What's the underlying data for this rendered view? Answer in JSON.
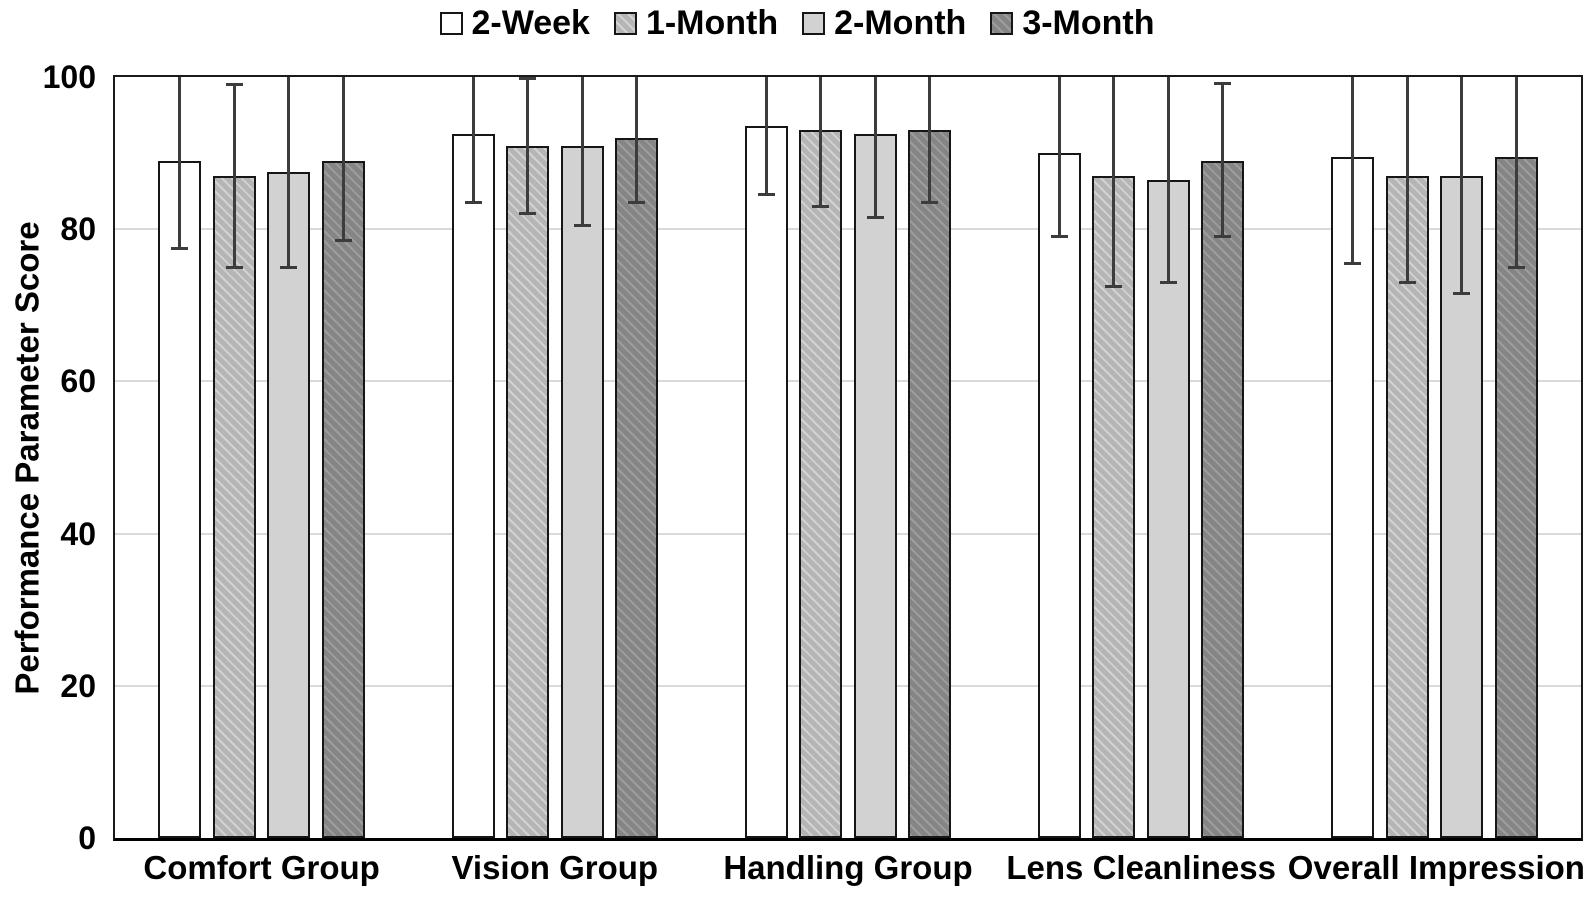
{
  "chart_data": {
    "type": "bar",
    "ylabel": "Performance Parameter Score",
    "ylim": [
      0,
      100
    ],
    "yticks": [
      0,
      20,
      40,
      60,
      80,
      100
    ],
    "gridlines": [
      20,
      40,
      60,
      80
    ],
    "grid": true,
    "legend_position": "top",
    "error_bars": true,
    "categories": [
      "Comfort Group",
      "Vision Group",
      "Handling Group",
      "Lens Cleanliness",
      "Overall Impression"
    ],
    "series": [
      {
        "name": "2-Week",
        "fill": "#ffffff",
        "stripe": null,
        "values": [
          89,
          92.5,
          93.5,
          90,
          89.5
        ],
        "err_low": [
          77.5,
          83.5,
          84.5,
          79,
          75.5
        ],
        "err_high": [
          100.6,
          101.2,
          102.3,
          101,
          103.5
        ]
      },
      {
        "name": "1-Month",
        "fill": "#b5b5b5",
        "stripe": "#d2d2d2",
        "values": [
          87,
          91,
          93,
          87,
          87
        ],
        "err_low": [
          75,
          82,
          83,
          72.5,
          73
        ],
        "err_high": [
          99,
          99.8,
          103,
          101.6,
          101.3
        ]
      },
      {
        "name": "2-Month",
        "fill": "#d2d2d2",
        "stripe": null,
        "values": [
          87.5,
          91,
          92.5,
          86.5,
          87
        ],
        "err_low": [
          75,
          80.5,
          81.5,
          73,
          71.5
        ],
        "err_high": [
          100.3,
          101.4,
          103.4,
          100.4,
          102.3
        ]
      },
      {
        "name": "3-Month",
        "fill": "#858585",
        "stripe": "#9d9d9d",
        "values": [
          89,
          92,
          93,
          89,
          89.5
        ],
        "err_low": [
          78.5,
          83.5,
          83.5,
          79,
          75
        ],
        "err_high": [
          100.4,
          100.6,
          102.4,
          99.2,
          104
        ]
      }
    ],
    "colors": {
      "axis": "#000000",
      "bar_border": "#161616",
      "error_bar": "#3c3c3c",
      "gridline": "#d9d9d9",
      "text": "#000000",
      "background": "#ffffff"
    }
  }
}
